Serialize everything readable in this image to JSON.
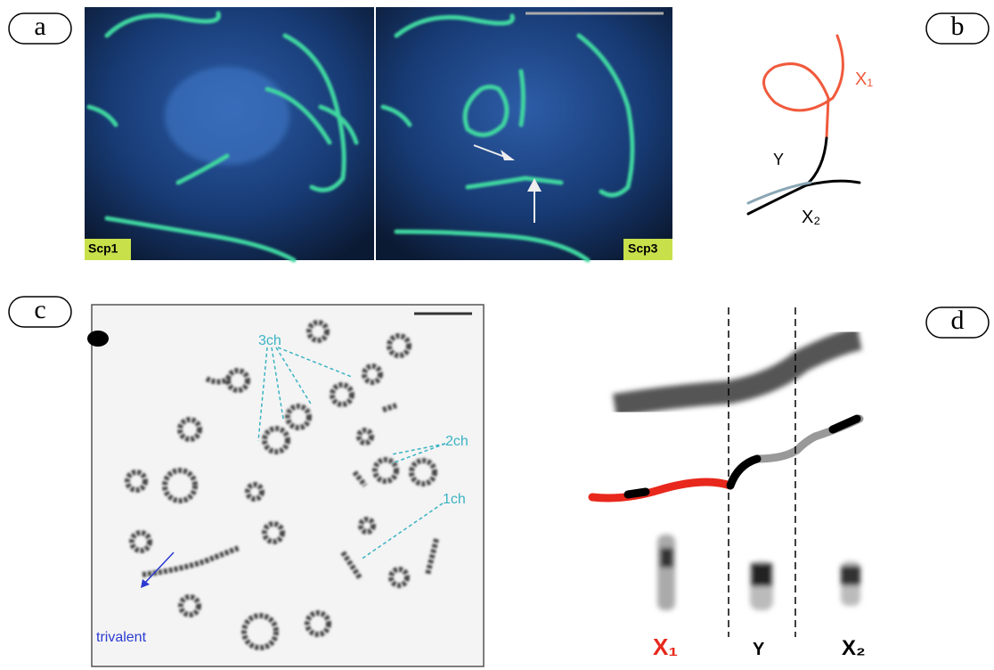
{
  "panels": {
    "a": {
      "label": "a",
      "left_tag": "Scp1",
      "right_tag": "Scp3"
    },
    "b": {
      "label": "b",
      "x1": "X₁",
      "y": "Y",
      "x2": "X₂"
    },
    "c": {
      "label": "c",
      "ann_3ch": "3ch",
      "ann_2ch": "2ch",
      "ann_1ch": "1ch",
      "ann_trivalent": "trivalent"
    },
    "d": {
      "label": "d",
      "x1": "X₁",
      "y": "Y",
      "x2": "X₂"
    }
  }
}
